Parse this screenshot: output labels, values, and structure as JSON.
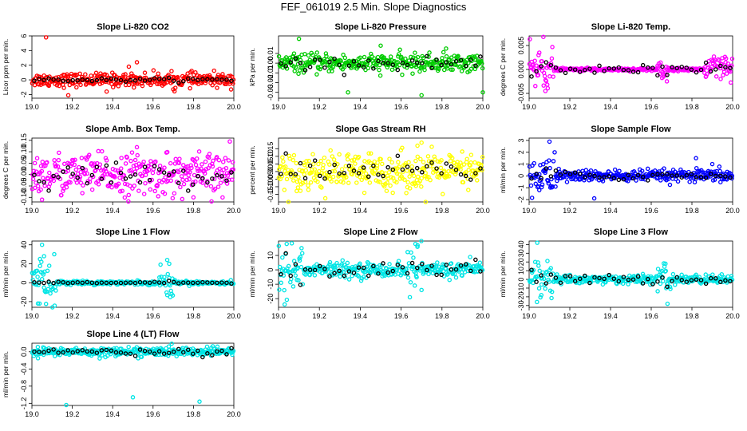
{
  "title": "FEF_061019  2.5 Min. Slope Diagnostics",
  "colors": {
    "red": "#ff0000",
    "green": "#00cc00",
    "magenta": "#ff00ff",
    "yellow": "#ffff00",
    "blue": "#0000ff",
    "cyan": "#00e5e5",
    "black": "#000000"
  },
  "chart_data": [
    {
      "type": "scatter",
      "title": "Slope Li-820 CO2",
      "ylabel": "Licor ppm per min.",
      "color": "red",
      "xlim": [
        19.0,
        20.0
      ],
      "ylim": [
        -2.5,
        6
      ],
      "yticks": [
        -2,
        0,
        2,
        4,
        6
      ],
      "yticklabels": [
        "-2",
        "0",
        "2",
        "4",
        "6"
      ],
      "noise": 0.45,
      "outliers": [
        [
          19.07,
          5.8
        ],
        [
          19.18,
          -2.1
        ],
        [
          19.37,
          -1.6
        ],
        [
          19.52,
          2.4
        ],
        [
          19.7,
          -1.3
        ],
        [
          19.48,
          1.8
        ]
      ],
      "zones": [],
      "black_spread": 0.12
    },
    {
      "type": "scatter",
      "title": "Slope Li-820 Pressure",
      "ylabel": "kPa per min.",
      "color": "green",
      "xlim": [
        19.0,
        20.0
      ],
      "ylim": [
        -0.036,
        0.028
      ],
      "yticks": [
        -0.03,
        -0.02,
        -0.01,
        0.0,
        0.01
      ],
      "yticklabels": [
        "-0.03",
        "-0.02",
        "-0.01",
        "0.00",
        "0.01"
      ],
      "noise": 0.0045,
      "outliers": [
        [
          19.1,
          0.025
        ],
        [
          19.34,
          -0.03
        ],
        [
          19.5,
          0.018
        ],
        [
          19.7,
          -0.033
        ],
        [
          20.0,
          -0.03
        ],
        [
          19.82,
          0.015
        ]
      ],
      "zones": [],
      "black_spread": 0.003
    },
    {
      "type": "scatter",
      "title": "Slope Li-820 Temp.",
      "ylabel": "degrees C per min.",
      "color": "magenta",
      "xlim": [
        19.0,
        20.0
      ],
      "ylim": [
        -0.006,
        0.007
      ],
      "yticks": [
        -0.005,
        0.0,
        0.005
      ],
      "yticklabels": [
        "-0.005",
        "0.000",
        "0.005"
      ],
      "noise": 0.00015,
      "outliers": [
        [
          19.07,
          0.0068
        ],
        [
          19.05,
          0.0035
        ],
        [
          19.08,
          -0.0045
        ]
      ],
      "zones": [
        [
          19.0,
          19.12,
          0.002
        ],
        [
          19.63,
          19.68,
          0.0015
        ],
        [
          19.86,
          20.0,
          0.0015
        ]
      ],
      "black_spread": 0.0004
    },
    {
      "type": "scatter",
      "title": "Slope Amb. Box Temp.",
      "ylabel": "degrees C per min.",
      "color": "magenta",
      "xlim": [
        19.0,
        20.0
      ],
      "ylim": [
        -0.12,
        0.16
      ],
      "yticks": [
        -0.1,
        -0.05,
        0.0,
        0.05,
        0.1,
        0.15
      ],
      "yticklabels": [
        "-0.10",
        "-0.05",
        "0.00",
        "0.05",
        "0.10",
        "0.15"
      ],
      "noise": 0.045,
      "outliers": [
        [
          19.98,
          0.145
        ],
        [
          19.05,
          -0.11
        ],
        [
          19.52,
          0.12
        ],
        [
          19.8,
          -0.1
        ]
      ],
      "zones": [],
      "black_spread": 0.025
    },
    {
      "type": "scatter",
      "title": "Slope Gas Stream RH",
      "ylabel": "percent per min.",
      "color": "yellow",
      "xlim": [
        19.0,
        20.0
      ],
      "ylim": [
        -0.2,
        0.22
      ],
      "yticks": [
        -0.15,
        -0.1,
        -0.05,
        0.0,
        0.05,
        0.1,
        0.15
      ],
      "yticklabels": [
        "-0.15",
        "-0.10",
        "-0.05",
        "0.00",
        "0.05",
        "0.10",
        "0.15"
      ],
      "noise": 0.06,
      "outliers": [
        [
          19.7,
          0.19
        ],
        [
          19.68,
          0.17
        ],
        [
          19.72,
          -0.2
        ],
        [
          19.42,
          -0.14
        ]
      ],
      "zones": [],
      "black_spread": 0.04
    },
    {
      "type": "scatter",
      "title": "Slope Sample Flow",
      "ylabel": "ml/min per min.",
      "color": "blue",
      "xlim": [
        19.0,
        20.0
      ],
      "ylim": [
        -2.2,
        3.2
      ],
      "yticks": [
        -2,
        -1,
        0,
        1,
        2,
        3
      ],
      "yticklabels": [
        "-2",
        "-1",
        "0",
        "1",
        "2",
        "3"
      ],
      "noise": 0.25,
      "outliers": [
        [
          19.1,
          2.9
        ],
        [
          19.32,
          -1.9
        ],
        [
          19.82,
          1.5
        ],
        [
          19.05,
          -1.2
        ],
        [
          19.9,
          1.0
        ]
      ],
      "zones": [
        [
          19.0,
          19.15,
          0.8
        ]
      ],
      "black_spread": 0.2
    },
    {
      "type": "scatter",
      "title": "Slope Line 1 Flow",
      "ylabel": "ml/min per min.",
      "color": "cyan",
      "xlim": [
        19.0,
        20.0
      ],
      "ylim": [
        -26,
        44
      ],
      "yticks": [
        -20,
        0,
        20,
        40
      ],
      "yticklabels": [
        "-20",
        "0",
        "20",
        "40"
      ],
      "noise": 1.0,
      "outliers": [
        [
          19.05,
          40
        ],
        [
          19.04,
          25
        ],
        [
          19.06,
          28
        ],
        [
          19.03,
          -22
        ],
        [
          19.67,
          24
        ],
        [
          19.68,
          20
        ]
      ],
      "zones": [
        [
          19.0,
          19.12,
          12
        ],
        [
          19.63,
          19.7,
          8
        ]
      ],
      "black_spread": 0.4
    },
    {
      "type": "scatter",
      "title": "Slope Line 2 Flow",
      "ylabel": "ml/min per min.",
      "color": "cyan",
      "xlim": [
        19.0,
        20.0
      ],
      "ylim": [
        -26,
        20
      ],
      "yticks": [
        -20,
        -10,
        0,
        10
      ],
      "yticklabels": [
        "-20",
        "-10",
        "0",
        "10"
      ],
      "noise": 2.5,
      "outliers": [
        [
          19.04,
          18
        ],
        [
          19.03,
          -24
        ],
        [
          19.67,
          18
        ],
        [
          19.68,
          16
        ],
        [
          19.7,
          -14
        ]
      ],
      "zones": [
        [
          19.0,
          19.12,
          10
        ],
        [
          19.63,
          19.7,
          9
        ]
      ],
      "black_spread": 2.5
    },
    {
      "type": "scatter",
      "title": "Slope Line 3 Flow",
      "ylabel": "ml/min per min.",
      "color": "cyan",
      "xlim": [
        19.0,
        20.0
      ],
      "ylim": [
        -32,
        44
      ],
      "yticks": [
        -30,
        -20,
        -10,
        0,
        10,
        20,
        30,
        40
      ],
      "yticklabels": [
        "-30",
        "-20",
        "-10",
        "0",
        "10",
        "20",
        "30",
        "40"
      ],
      "noise": 2.5,
      "outliers": [
        [
          19.04,
          42
        ],
        [
          19.03,
          20
        ],
        [
          19.68,
          -28
        ],
        [
          19.67,
          18
        ],
        [
          19.06,
          -18
        ]
      ],
      "zones": [
        [
          19.0,
          19.12,
          12
        ],
        [
          19.63,
          19.7,
          8
        ]
      ],
      "black_spread": 2.5
    },
    {
      "type": "scatter",
      "title": "Slope Line 4 (LT) Flow",
      "ylabel": "ml/min per min.",
      "color": "cyan",
      "xlim": [
        19.0,
        20.0
      ],
      "ylim": [
        -1.25,
        0.2
      ],
      "yticks": [
        -1.2,
        -0.8,
        -0.4,
        0.0
      ],
      "yticklabels": [
        "-1.2",
        "-0.8",
        "-0.4",
        "0.0"
      ],
      "noise": 0.05,
      "outliers": [
        [
          19.17,
          -1.24
        ],
        [
          19.5,
          -1.06
        ],
        [
          19.83,
          -1.16
        ],
        [
          19.03,
          -0.15
        ]
      ],
      "zones": [],
      "black_spread": 0.04
    }
  ],
  "xticks": [
    19.0,
    19.2,
    19.4,
    19.6,
    19.8,
    20.0
  ],
  "xticklabels": [
    "19.0",
    "19.2",
    "19.4",
    "19.6",
    "19.8",
    "20.0"
  ]
}
